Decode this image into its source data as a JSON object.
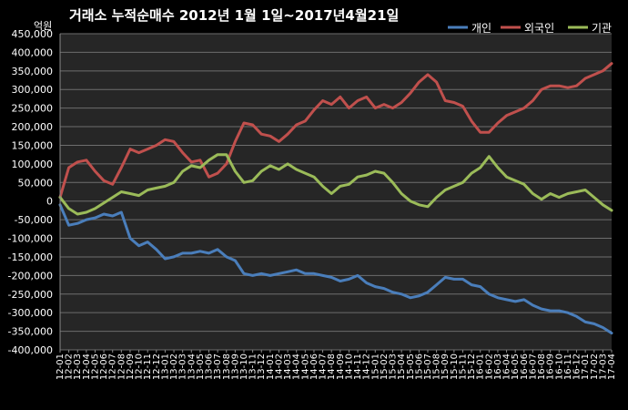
{
  "chart_data": {
    "type": "line",
    "title": "거래소 누적순매수 2012년 1월 1일~2017년4월21일",
    "ylabel": "억원",
    "ylim": [
      -400000,
      450000
    ],
    "yticks": [
      450000,
      400000,
      350000,
      300000,
      250000,
      200000,
      150000,
      100000,
      50000,
      0,
      -50000,
      -100000,
      -150000,
      -200000,
      -250000,
      -300000,
      -350000,
      -400000
    ],
    "ytick_labels": [
      "450,000",
      "400,000",
      "350,000",
      "300,000",
      "250,000",
      "200,000",
      "150,000",
      "100,000",
      "50,000",
      "0",
      "-50,000",
      "-100,000",
      "-150,000",
      "-200,000",
      "-250,000",
      "-300,000",
      "-350,000",
      "-400,000"
    ],
    "grid": "horizontal",
    "legend": "top-right",
    "x": [
      "12-01",
      "12-02",
      "12-03",
      "12-04",
      "12-05",
      "12-06",
      "12-07",
      "12-08",
      "12-09",
      "12-10",
      "12-11",
      "12-12",
      "13-01",
      "13-02",
      "13-03",
      "13-04",
      "13-05",
      "13-06",
      "13-07",
      "13-08",
      "13-09",
      "13-10",
      "13-11",
      "13-12",
      "14-01",
      "14-02",
      "14-03",
      "14-04",
      "14-05",
      "14-06",
      "14-07",
      "14-08",
      "14-09",
      "14-10",
      "14-11",
      "14-12",
      "15-01",
      "15-02",
      "15-03",
      "15-04",
      "15-05",
      "15-06",
      "15-07",
      "15-08",
      "15-09",
      "15-10",
      "15-11",
      "15-12",
      "16-01",
      "16-02",
      "16-03",
      "16-04",
      "16-05",
      "16-06",
      "16-07",
      "16-08",
      "16-09",
      "16-10",
      "16-11",
      "16-12",
      "17-01",
      "17-02",
      "17-03",
      "17-04"
    ],
    "series": [
      {
        "name": "개인",
        "color": "#4a7ebb",
        "values": [
          -10000,
          -65000,
          -60000,
          -50000,
          -45000,
          -35000,
          -40000,
          -30000,
          -100000,
          -120000,
          -110000,
          -130000,
          -155000,
          -150000,
          -140000,
          -140000,
          -135000,
          -140000,
          -130000,
          -150000,
          -160000,
          -195000,
          -200000,
          -195000,
          -200000,
          -195000,
          -190000,
          -185000,
          -195000,
          -195000,
          -200000,
          -205000,
          -215000,
          -210000,
          -200000,
          -220000,
          -230000,
          -235000,
          -245000,
          -250000,
          -260000,
          -255000,
          -245000,
          -225000,
          -205000,
          -210000,
          -210000,
          -225000,
          -230000,
          -250000,
          -260000,
          -265000,
          -270000,
          -265000,
          -280000,
          -290000,
          -295000,
          -295000,
          -300000,
          -310000,
          -325000,
          -330000,
          -340000,
          -355000
        ]
      },
      {
        "name": "외국인",
        "color": "#c0504d",
        "values": [
          10000,
          90000,
          105000,
          110000,
          80000,
          55000,
          45000,
          90000,
          140000,
          130000,
          140000,
          150000,
          165000,
          160000,
          130000,
          105000,
          110000,
          65000,
          75000,
          100000,
          160000,
          210000,
          205000,
          180000,
          175000,
          160000,
          180000,
          205000,
          215000,
          245000,
          270000,
          260000,
          280000,
          250000,
          270000,
          280000,
          250000,
          260000,
          250000,
          265000,
          290000,
          320000,
          340000,
          320000,
          270000,
          265000,
          255000,
          215000,
          185000,
          185000,
          210000,
          230000,
          240000,
          250000,
          270000,
          300000,
          310000,
          310000,
          305000,
          310000,
          330000,
          340000,
          350000,
          370000
        ]
      },
      {
        "name": "기관",
        "color": "#9bbb59",
        "values": [
          10000,
          -20000,
          -35000,
          -30000,
          -20000,
          -5000,
          10000,
          25000,
          20000,
          15000,
          30000,
          35000,
          40000,
          50000,
          80000,
          95000,
          90000,
          110000,
          125000,
          125000,
          80000,
          50000,
          55000,
          80000,
          95000,
          85000,
          100000,
          85000,
          75000,
          65000,
          40000,
          20000,
          40000,
          45000,
          65000,
          70000,
          80000,
          75000,
          50000,
          20000,
          0,
          -10000,
          -15000,
          10000,
          30000,
          40000,
          50000,
          75000,
          90000,
          120000,
          90000,
          65000,
          55000,
          45000,
          20000,
          5000,
          20000,
          10000,
          20000,
          25000,
          30000,
          10000,
          -10000,
          -25000
        ]
      }
    ]
  }
}
